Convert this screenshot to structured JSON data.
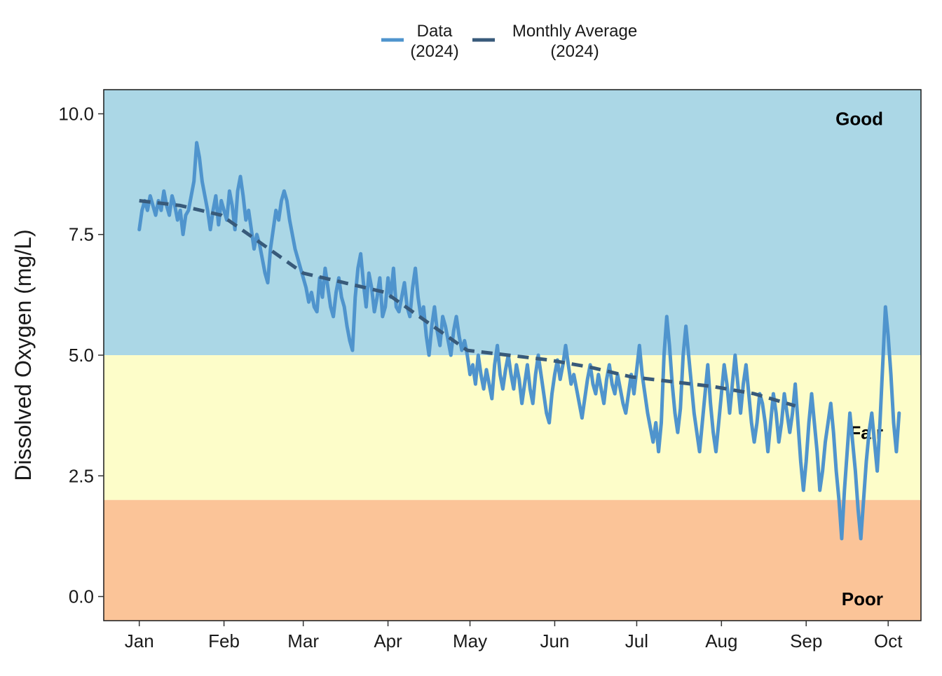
{
  "chart_data": {
    "type": "line",
    "title": "",
    "xlabel": "",
    "ylabel": "Dissolved Oxygen (mg/L)",
    "ylim": [
      -0.5,
      10.5
    ],
    "yticks": [
      0.0,
      2.5,
      5.0,
      7.5,
      10.0
    ],
    "ytick_labels": [
      "0.0",
      "2.5",
      "5.0",
      "7.5",
      "10.0"
    ],
    "xlim": [
      -13,
      286
    ],
    "xticks": [
      {
        "label": "Jan",
        "day": 0
      },
      {
        "label": "Feb",
        "day": 31
      },
      {
        "label": "Mar",
        "day": 60
      },
      {
        "label": "Apr",
        "day": 91
      },
      {
        "label": "May",
        "day": 121
      },
      {
        "label": "Jun",
        "day": 152
      },
      {
        "label": "Jul",
        "day": 182
      },
      {
        "label": "Aug",
        "day": 213
      },
      {
        "label": "Sep",
        "day": 244
      },
      {
        "label": "Oct",
        "day": 274
      }
    ],
    "grid": false,
    "legend_position": "top",
    "zones": [
      {
        "label": "Good",
        "from": 5.0,
        "to": 10.5,
        "color": "#abd7e6"
      },
      {
        "label": "Fair",
        "from": 2.0,
        "to": 5.0,
        "color": "#fdfdc9"
      },
      {
        "label": "Poor",
        "from": -0.5,
        "to": 2.0,
        "color": "#fbc498"
      }
    ],
    "series": [
      {
        "name": "Data\n(2024)",
        "style": "solid",
        "color": "#4f94cd",
        "points": [
          [
            0,
            7.6
          ],
          [
            1,
            8.0
          ],
          [
            2,
            8.2
          ],
          [
            3,
            8.0
          ],
          [
            4,
            8.3
          ],
          [
            5,
            8.1
          ],
          [
            6,
            7.9
          ],
          [
            7,
            8.2
          ],
          [
            8,
            8.0
          ],
          [
            9,
            8.4
          ],
          [
            10,
            8.1
          ],
          [
            11,
            7.9
          ],
          [
            12,
            8.3
          ],
          [
            13,
            8.1
          ],
          [
            14,
            7.8
          ],
          [
            15,
            8.0
          ],
          [
            16,
            7.5
          ],
          [
            17,
            7.9
          ],
          [
            18,
            8.0
          ],
          [
            19,
            8.3
          ],
          [
            20,
            8.6
          ],
          [
            21,
            9.4
          ],
          [
            22,
            9.1
          ],
          [
            23,
            8.6
          ],
          [
            24,
            8.3
          ],
          [
            25,
            8.0
          ],
          [
            26,
            7.6
          ],
          [
            27,
            8.0
          ],
          [
            28,
            8.3
          ],
          [
            29,
            7.7
          ],
          [
            30,
            8.2
          ],
          [
            31,
            8.0
          ],
          [
            32,
            7.8
          ],
          [
            33,
            8.4
          ],
          [
            34,
            8.1
          ],
          [
            35,
            7.6
          ],
          [
            36,
            8.4
          ],
          [
            37,
            8.7
          ],
          [
            38,
            8.3
          ],
          [
            39,
            7.8
          ],
          [
            40,
            8.0
          ],
          [
            41,
            7.6
          ],
          [
            42,
            7.2
          ],
          [
            43,
            7.5
          ],
          [
            44,
            7.3
          ],
          [
            45,
            7.0
          ],
          [
            46,
            6.7
          ],
          [
            47,
            6.5
          ],
          [
            48,
            7.2
          ],
          [
            49,
            7.6
          ],
          [
            50,
            8.0
          ],
          [
            51,
            7.8
          ],
          [
            52,
            8.2
          ],
          [
            53,
            8.4
          ],
          [
            54,
            8.2
          ],
          [
            55,
            7.8
          ],
          [
            56,
            7.5
          ],
          [
            57,
            7.2
          ],
          [
            58,
            7.0
          ],
          [
            59,
            6.8
          ],
          [
            60,
            6.6
          ],
          [
            61,
            6.4
          ],
          [
            62,
            6.1
          ],
          [
            63,
            6.3
          ],
          [
            64,
            6.0
          ],
          [
            65,
            5.9
          ],
          [
            66,
            6.6
          ],
          [
            67,
            6.2
          ],
          [
            68,
            6.8
          ],
          [
            69,
            6.4
          ],
          [
            70,
            6.0
          ],
          [
            71,
            5.8
          ],
          [
            72,
            6.3
          ],
          [
            73,
            6.6
          ],
          [
            74,
            6.2
          ],
          [
            75,
            6.0
          ],
          [
            76,
            5.6
          ],
          [
            77,
            5.3
          ],
          [
            78,
            5.1
          ],
          [
            79,
            6.2
          ],
          [
            80,
            6.8
          ],
          [
            81,
            7.1
          ],
          [
            82,
            6.5
          ],
          [
            83,
            6.0
          ],
          [
            84,
            6.7
          ],
          [
            85,
            6.4
          ],
          [
            86,
            5.9
          ],
          [
            87,
            6.2
          ],
          [
            88,
            6.6
          ],
          [
            89,
            5.8
          ],
          [
            90,
            6.0
          ],
          [
            91,
            6.6
          ],
          [
            92,
            6.2
          ],
          [
            93,
            6.8
          ],
          [
            94,
            6.0
          ],
          [
            95,
            5.9
          ],
          [
            96,
            6.2
          ],
          [
            97,
            6.5
          ],
          [
            98,
            6.0
          ],
          [
            99,
            5.8
          ],
          [
            100,
            6.4
          ],
          [
            101,
            6.8
          ],
          [
            102,
            6.2
          ],
          [
            103,
            5.8
          ],
          [
            104,
            6.0
          ],
          [
            105,
            5.4
          ],
          [
            106,
            5.0
          ],
          [
            107,
            5.6
          ],
          [
            108,
            6.0
          ],
          [
            109,
            5.5
          ],
          [
            110,
            5.2
          ],
          [
            111,
            5.8
          ],
          [
            112,
            5.6
          ],
          [
            113,
            5.3
          ],
          [
            114,
            5.0
          ],
          [
            115,
            5.5
          ],
          [
            116,
            5.8
          ],
          [
            117,
            5.4
          ],
          [
            118,
            5.1
          ],
          [
            119,
            5.3
          ],
          [
            120,
            5.0
          ],
          [
            121,
            4.6
          ],
          [
            122,
            4.8
          ],
          [
            123,
            4.4
          ],
          [
            124,
            5.0
          ],
          [
            125,
            4.6
          ],
          [
            126,
            4.3
          ],
          [
            127,
            4.7
          ],
          [
            128,
            4.4
          ],
          [
            129,
            4.1
          ],
          [
            130,
            4.8
          ],
          [
            131,
            5.2
          ],
          [
            132,
            4.6
          ],
          [
            133,
            4.3
          ],
          [
            134,
            4.7
          ],
          [
            135,
            5.0
          ],
          [
            136,
            4.6
          ],
          [
            137,
            4.3
          ],
          [
            138,
            4.8
          ],
          [
            139,
            4.5
          ],
          [
            140,
            4.0
          ],
          [
            141,
            4.4
          ],
          [
            142,
            4.8
          ],
          [
            143,
            4.3
          ],
          [
            144,
            4.0
          ],
          [
            145,
            4.6
          ],
          [
            146,
            5.0
          ],
          [
            147,
            4.6
          ],
          [
            148,
            4.2
          ],
          [
            149,
            3.8
          ],
          [
            150,
            3.6
          ],
          [
            151,
            4.2
          ],
          [
            152,
            4.6
          ],
          [
            153,
            4.9
          ],
          [
            154,
            4.5
          ],
          [
            155,
            4.8
          ],
          [
            156,
            5.2
          ],
          [
            157,
            4.8
          ],
          [
            158,
            4.4
          ],
          [
            159,
            4.6
          ],
          [
            160,
            4.3
          ],
          [
            161,
            4.0
          ],
          [
            162,
            3.7
          ],
          [
            163,
            4.1
          ],
          [
            164,
            4.5
          ],
          [
            165,
            4.8
          ],
          [
            166,
            4.4
          ],
          [
            167,
            4.2
          ],
          [
            168,
            4.6
          ],
          [
            169,
            4.3
          ],
          [
            170,
            4.0
          ],
          [
            171,
            4.5
          ],
          [
            172,
            4.8
          ],
          [
            173,
            4.4
          ],
          [
            174,
            4.2
          ],
          [
            175,
            4.6
          ],
          [
            176,
            4.3
          ],
          [
            177,
            4.0
          ],
          [
            178,
            3.8
          ],
          [
            179,
            4.2
          ],
          [
            180,
            4.6
          ],
          [
            181,
            4.2
          ],
          [
            182,
            4.7
          ],
          [
            183,
            5.2
          ],
          [
            184,
            4.6
          ],
          [
            185,
            4.2
          ],
          [
            186,
            3.8
          ],
          [
            187,
            3.5
          ],
          [
            188,
            3.2
          ],
          [
            189,
            3.6
          ],
          [
            190,
            3.0
          ],
          [
            191,
            3.6
          ],
          [
            192,
            5.0
          ],
          [
            193,
            5.8
          ],
          [
            194,
            5.2
          ],
          [
            195,
            4.4
          ],
          [
            196,
            3.8
          ],
          [
            197,
            3.4
          ],
          [
            198,
            3.9
          ],
          [
            199,
            5.0
          ],
          [
            200,
            5.6
          ],
          [
            201,
            5.0
          ],
          [
            202,
            4.4
          ],
          [
            203,
            3.8
          ],
          [
            204,
            3.4
          ],
          [
            205,
            3.0
          ],
          [
            206,
            3.6
          ],
          [
            207,
            4.2
          ],
          [
            208,
            4.8
          ],
          [
            209,
            4.0
          ],
          [
            210,
            3.4
          ],
          [
            211,
            3.0
          ],
          [
            212,
            3.6
          ],
          [
            213,
            4.2
          ],
          [
            214,
            4.8
          ],
          [
            215,
            4.4
          ],
          [
            216,
            3.8
          ],
          [
            217,
            4.4
          ],
          [
            218,
            5.0
          ],
          [
            219,
            4.4
          ],
          [
            220,
            3.8
          ],
          [
            221,
            4.4
          ],
          [
            222,
            4.8
          ],
          [
            223,
            4.2
          ],
          [
            224,
            3.6
          ],
          [
            225,
            3.2
          ],
          [
            226,
            3.6
          ],
          [
            227,
            4.2
          ],
          [
            228,
            4.0
          ],
          [
            229,
            3.6
          ],
          [
            230,
            3.0
          ],
          [
            231,
            3.6
          ],
          [
            232,
            4.2
          ],
          [
            233,
            3.8
          ],
          [
            234,
            3.2
          ],
          [
            235,
            3.6
          ],
          [
            236,
            4.2
          ],
          [
            237,
            3.8
          ],
          [
            238,
            3.4
          ],
          [
            239,
            3.8
          ],
          [
            240,
            4.4
          ],
          [
            241,
            3.6
          ],
          [
            242,
            2.8
          ],
          [
            243,
            2.2
          ],
          [
            244,
            2.8
          ],
          [
            245,
            3.6
          ],
          [
            246,
            4.2
          ],
          [
            247,
            3.6
          ],
          [
            248,
            3.0
          ],
          [
            249,
            2.2
          ],
          [
            250,
            2.6
          ],
          [
            251,
            3.2
          ],
          [
            252,
            3.6
          ],
          [
            253,
            4.0
          ],
          [
            254,
            3.4
          ],
          [
            255,
            2.6
          ],
          [
            256,
            2.0
          ],
          [
            257,
            1.2
          ],
          [
            258,
            2.2
          ],
          [
            259,
            3.0
          ],
          [
            260,
            3.8
          ],
          [
            261,
            3.2
          ],
          [
            262,
            2.6
          ],
          [
            263,
            1.8
          ],
          [
            264,
            1.2
          ],
          [
            265,
            2.0
          ],
          [
            266,
            2.8
          ],
          [
            267,
            3.4
          ],
          [
            268,
            3.8
          ],
          [
            269,
            3.2
          ],
          [
            270,
            2.6
          ],
          [
            271,
            3.6
          ],
          [
            272,
            4.8
          ],
          [
            273,
            6.0
          ],
          [
            274,
            5.4
          ],
          [
            275,
            4.6
          ],
          [
            276,
            3.6
          ],
          [
            277,
            3.0
          ],
          [
            278,
            3.8
          ]
        ]
      },
      {
        "name": "Monthly Average\n(2024)",
        "style": "dashed",
        "color": "#385a7a",
        "points": [
          [
            0,
            8.2
          ],
          [
            15,
            8.1
          ],
          [
            30,
            7.9
          ],
          [
            45,
            7.3
          ],
          [
            60,
            6.7
          ],
          [
            75,
            6.5
          ],
          [
            90,
            6.3
          ],
          [
            105,
            5.7
          ],
          [
            120,
            5.1
          ],
          [
            135,
            5.0
          ],
          [
            150,
            4.9
          ],
          [
            165,
            4.75
          ],
          [
            180,
            4.55
          ],
          [
            195,
            4.45
          ],
          [
            210,
            4.35
          ],
          [
            225,
            4.2
          ],
          [
            240,
            3.95
          ]
        ]
      }
    ]
  }
}
